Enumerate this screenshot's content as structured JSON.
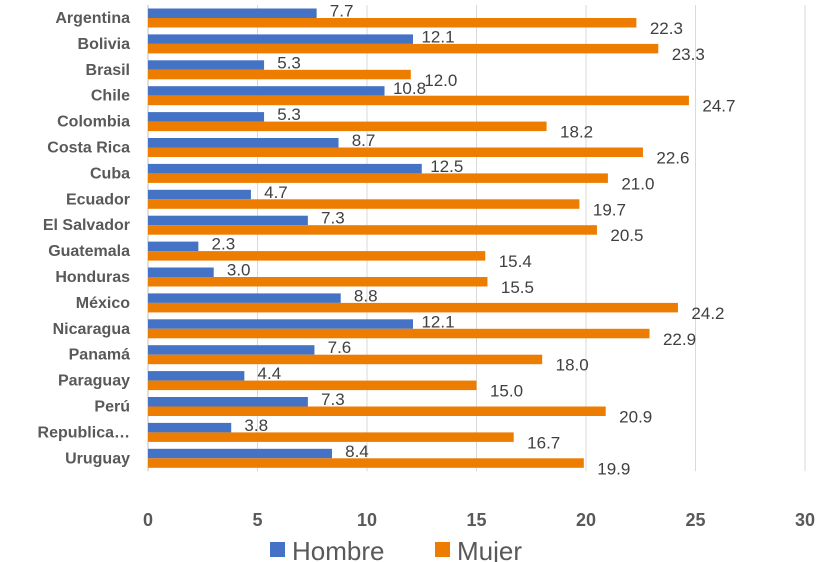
{
  "chart_data": {
    "type": "bar",
    "orientation": "horizontal",
    "title": "",
    "xlabel": "",
    "ylabel": "",
    "categories": [
      "Argentina",
      "Bolivia",
      "Brasil",
      "Chile",
      "Colombia",
      "Costa Rica",
      "Cuba",
      "Ecuador",
      "El Salvador",
      "Guatemala",
      "Honduras",
      "México",
      "Nicaragua",
      "Panamá",
      "Paraguay",
      "Perú",
      "Republica…",
      "Uruguay"
    ],
    "series": [
      {
        "name": "Hombre",
        "color": "#4472C4",
        "values": [
          7.7,
          12.1,
          5.3,
          10.8,
          5.3,
          8.7,
          12.5,
          4.7,
          7.3,
          2.3,
          3.0,
          8.8,
          12.1,
          7.6,
          4.4,
          7.3,
          3.8,
          8.4
        ]
      },
      {
        "name": "Mujer",
        "color": "#ED7D00",
        "values": [
          22.3,
          23.3,
          12.0,
          24.7,
          18.2,
          22.6,
          21.0,
          19.7,
          20.5,
          15.4,
          15.5,
          24.2,
          22.9,
          18.0,
          15.0,
          20.9,
          16.7,
          19.9
        ]
      }
    ],
    "xlim": [
      0,
      30
    ],
    "xticks": [
      0,
      5,
      10,
      15,
      20,
      25,
      30
    ],
    "grid": true,
    "legend_position": "bottom",
    "data_labels": true
  }
}
